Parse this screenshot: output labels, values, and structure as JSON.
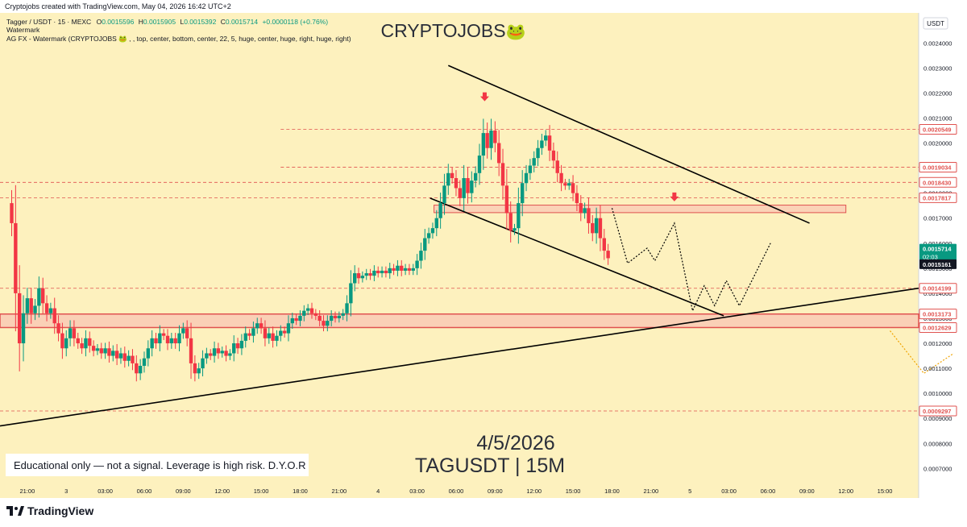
{
  "header": {
    "credit": "Cryptojobs created with TradingView.com, May 04, 2026 16:42 UTC+2"
  },
  "chart_data": {
    "type": "candlestick",
    "symbol_line": {
      "name": "Tagger / USDT · 15 · MEXC",
      "o_label": "O",
      "o": "0.0015596",
      "h_label": "H",
      "h": "0.0015905",
      "l_label": "L",
      "l": "0.0015392",
      "c_label": "C",
      "c": "0.0015714",
      "change": "+0.0000118 (+0.76%)"
    },
    "indicator_1": "Watermark",
    "indicator_2": "AG FX - Watermark (CRYPTOJOBS 🐸 , , top, center, bottom, center, 22, 5, huge, center, huge, right, huge, right)",
    "watermark": "CRYPTOJOBS",
    "watermark_emoji": "🐸",
    "date_title": "4/5/2026",
    "symbol_title": "TAGUSDT | 15M",
    "disclaimer": "Educational only — not a signal. Leverage is high risk. D.Y.O.R",
    "currency": "USDT",
    "y_range": [
      0.00064,
      0.00252
    ],
    "y_ticks": [
      {
        "v": 0.0024,
        "label": "0.0024000"
      },
      {
        "v": 0.0023,
        "label": "0.0023000"
      },
      {
        "v": 0.0022,
        "label": "0.0022000"
      },
      {
        "v": 0.0021,
        "label": "0.0021000"
      },
      {
        "v": 0.002,
        "label": "0.0020000"
      },
      {
        "v": 0.0019,
        "label": "0.0019000"
      },
      {
        "v": 0.0018,
        "label": "0.0018000"
      },
      {
        "v": 0.0017,
        "label": "0.0017000"
      },
      {
        "v": 0.0016,
        "label": "0.0016000"
      },
      {
        "v": 0.0015,
        "label": "0.0015000"
      },
      {
        "v": 0.0014,
        "label": "0.0014000"
      },
      {
        "v": 0.0013,
        "label": "0.0013000"
      },
      {
        "v": 0.0012,
        "label": "0.0012000"
      },
      {
        "v": 0.0011,
        "label": "0.0011000"
      },
      {
        "v": 0.001,
        "label": "0.0010000"
      },
      {
        "v": 0.0009,
        "label": "0.0009000"
      },
      {
        "v": 0.0008,
        "label": "0.0008000"
      },
      {
        "v": 0.0007,
        "label": "0.0007000"
      }
    ],
    "x_labels": [
      {
        "t": 0,
        "label": "21:00"
      },
      {
        "t": 3,
        "label": "3"
      },
      {
        "t": 6,
        "label": "03:00"
      },
      {
        "t": 9,
        "label": "06:00"
      },
      {
        "t": 12,
        "label": "09:00"
      },
      {
        "t": 15,
        "label": "12:00"
      },
      {
        "t": 18,
        "label": "15:00"
      },
      {
        "t": 21,
        "label": "18:00"
      },
      {
        "t": 24,
        "label": "21:00"
      },
      {
        "t": 27,
        "label": "4"
      },
      {
        "t": 30,
        "label": "03:00"
      },
      {
        "t": 33,
        "label": "06:00"
      },
      {
        "t": 36,
        "label": "09:00"
      },
      {
        "t": 39,
        "label": "12:00"
      },
      {
        "t": 42,
        "label": "15:00"
      },
      {
        "t": 45,
        "label": "18:00"
      },
      {
        "t": 48,
        "label": "21:00"
      },
      {
        "t": 51,
        "label": "5"
      },
      {
        "t": 54,
        "label": "03:00"
      },
      {
        "t": 57,
        "label": "06:00"
      },
      {
        "t": 60,
        "label": "09:00"
      },
      {
        "t": 63,
        "label": "12:00"
      },
      {
        "t": 66,
        "label": "15:00"
      }
    ],
    "x_range": [
      -2.1,
      68.6
    ],
    "key_levels": [
      {
        "v": 0.0020549,
        "label": "0.0020549"
      },
      {
        "v": 0.0019034,
        "label": "0.0019034"
      },
      {
        "v": 0.001843,
        "label": "0.0018430"
      },
      {
        "v": 0.0017817,
        "label": "0.0017817"
      },
      {
        "v": 0.0014199,
        "label": "0.0014199"
      },
      {
        "v": 0.0013173,
        "label": "0.0013173"
      },
      {
        "v": 0.0012629,
        "label": "0.0012629"
      },
      {
        "v": 0.0009297,
        "label": "0.0009297"
      }
    ],
    "current_price": {
      "v": 0.0015714,
      "label": "0.0015714",
      "countdown": "02:03"
    },
    "secondary_price": {
      "v": 0.0015161,
      "label": "0.0015161"
    },
    "price_path": [
      [
        -1.5,
        0.00176
      ],
      [
        -1.2,
        0.00168
      ],
      [
        -0.9,
        0.0014
      ],
      [
        -0.6,
        0.0012
      ],
      [
        -0.3,
        0.00132
      ],
      [
        0.0,
        0.00138
      ],
      [
        0.3,
        0.00132
      ],
      [
        0.6,
        0.00135
      ],
      [
        0.9,
        0.00142
      ],
      [
        1.2,
        0.00136
      ],
      [
        1.5,
        0.00132
      ],
      [
        1.8,
        0.00134
      ],
      [
        2.1,
        0.00128
      ],
      [
        2.4,
        0.00124
      ],
      [
        2.7,
        0.00118
      ],
      [
        3.0,
        0.00122
      ],
      [
        3.3,
        0.00126
      ],
      [
        3.6,
        0.00122
      ],
      [
        3.9,
        0.0012
      ],
      [
        4.2,
        0.00118
      ],
      [
        4.5,
        0.00122
      ],
      [
        4.8,
        0.00119
      ],
      [
        5.1,
        0.00117
      ],
      [
        5.4,
        0.00118
      ],
      [
        5.7,
        0.00116
      ],
      [
        6.0,
        0.00118
      ],
      [
        6.3,
        0.00115
      ],
      [
        6.6,
        0.00117
      ],
      [
        6.9,
        0.00114
      ],
      [
        7.2,
        0.00116
      ],
      [
        7.5,
        0.00113
      ],
      [
        7.8,
        0.00115
      ],
      [
        8.1,
        0.00112
      ],
      [
        8.4,
        0.00108
      ],
      [
        8.7,
        0.00111
      ],
      [
        9.0,
        0.00114
      ],
      [
        9.3,
        0.00118
      ],
      [
        9.6,
        0.00122
      ],
      [
        9.9,
        0.0012
      ],
      [
        10.2,
        0.00124
      ],
      [
        10.5,
        0.00123
      ],
      [
        10.8,
        0.0012
      ],
      [
        11.1,
        0.00122
      ],
      [
        11.4,
        0.0012
      ],
      [
        11.7,
        0.00124
      ],
      [
        12.0,
        0.00126
      ],
      [
        12.3,
        0.00122
      ],
      [
        12.6,
        0.00112
      ],
      [
        12.9,
        0.00108
      ],
      [
        13.2,
        0.0011
      ],
      [
        13.5,
        0.00114
      ],
      [
        13.8,
        0.00116
      ],
      [
        14.1,
        0.00115
      ],
      [
        14.4,
        0.00118
      ],
      [
        14.7,
        0.00116
      ],
      [
        15.0,
        0.00117
      ],
      [
        15.3,
        0.00115
      ],
      [
        15.6,
        0.00116
      ],
      [
        15.9,
        0.0012
      ],
      [
        16.2,
        0.00118
      ],
      [
        16.5,
        0.00121
      ],
      [
        16.8,
        0.00124
      ],
      [
        17.1,
        0.00123
      ],
      [
        17.4,
        0.00126
      ],
      [
        17.7,
        0.00128
      ],
      [
        18.0,
        0.00126
      ],
      [
        18.3,
        0.00122
      ],
      [
        18.6,
        0.00124
      ],
      [
        18.9,
        0.00121
      ],
      [
        19.2,
        0.00123
      ],
      [
        19.5,
        0.00125
      ],
      [
        19.8,
        0.00124
      ],
      [
        20.1,
        0.00128
      ],
      [
        20.4,
        0.0013
      ],
      [
        20.7,
        0.00129
      ],
      [
        21.0,
        0.00131
      ],
      [
        21.3,
        0.00133
      ],
      [
        21.6,
        0.00134
      ],
      [
        21.9,
        0.00132
      ],
      [
        22.2,
        0.00131
      ],
      [
        22.5,
        0.00129
      ],
      [
        22.8,
        0.00127
      ],
      [
        23.1,
        0.00129
      ],
      [
        23.4,
        0.00131
      ],
      [
        23.7,
        0.0013
      ],
      [
        24.0,
        0.00131
      ],
      [
        24.3,
        0.00132
      ],
      [
        24.6,
        0.00136
      ],
      [
        24.9,
        0.00144
      ],
      [
        25.2,
        0.00148
      ],
      [
        25.5,
        0.00146
      ],
      [
        25.8,
        0.00147
      ],
      [
        26.1,
        0.00148
      ],
      [
        26.4,
        0.00147
      ],
      [
        26.7,
        0.00149
      ],
      [
        27.0,
        0.00148
      ],
      [
        27.3,
        0.00149
      ],
      [
        27.6,
        0.00148
      ],
      [
        27.9,
        0.0015
      ],
      [
        28.2,
        0.00149
      ],
      [
        28.5,
        0.00151
      ],
      [
        28.8,
        0.00149
      ],
      [
        29.1,
        0.0015
      ],
      [
        29.4,
        0.00149
      ],
      [
        29.7,
        0.0015
      ],
      [
        30.0,
        0.00153
      ],
      [
        30.3,
        0.00157
      ],
      [
        30.6,
        0.00162
      ],
      [
        30.9,
        0.00164
      ],
      [
        31.2,
        0.00166
      ],
      [
        31.5,
        0.0017
      ],
      [
        31.8,
        0.00176
      ],
      [
        32.1,
        0.00183
      ],
      [
        32.4,
        0.00188
      ],
      [
        32.7,
        0.00186
      ],
      [
        33.0,
        0.00182
      ],
      [
        33.3,
        0.00178
      ],
      [
        33.6,
        0.00186
      ],
      [
        33.9,
        0.0018
      ],
      [
        34.2,
        0.00185
      ],
      [
        34.5,
        0.00188
      ],
      [
        34.8,
        0.00195
      ],
      [
        35.1,
        0.00204
      ],
      [
        35.4,
        0.00198
      ],
      [
        35.7,
        0.00205
      ],
      [
        36.0,
        0.002
      ],
      [
        36.3,
        0.00192
      ],
      [
        36.6,
        0.00183
      ],
      [
        36.9,
        0.00172
      ],
      [
        37.2,
        0.00165
      ],
      [
        37.5,
        0.00166
      ],
      [
        37.8,
        0.00176
      ],
      [
        38.1,
        0.00184
      ],
      [
        38.4,
        0.00188
      ],
      [
        38.7,
        0.00191
      ],
      [
        39.0,
        0.00194
      ],
      [
        39.3,
        0.00198
      ],
      [
        39.6,
        0.00201
      ],
      [
        39.9,
        0.00203
      ],
      [
        40.2,
        0.00197
      ],
      [
        40.5,
        0.00193
      ],
      [
        40.8,
        0.00188
      ],
      [
        41.1,
        0.00184
      ],
      [
        41.4,
        0.00183
      ],
      [
        41.7,
        0.00184
      ],
      [
        42.0,
        0.0018
      ],
      [
        42.3,
        0.00176
      ],
      [
        42.6,
        0.00172
      ],
      [
        42.9,
        0.00174
      ],
      [
        43.2,
        0.00168
      ],
      [
        43.5,
        0.00164
      ],
      [
        43.8,
        0.0017
      ],
      [
        44.1,
        0.00162
      ],
      [
        44.4,
        0.00157
      ],
      [
        44.7,
        0.00154
      ]
    ],
    "projected_path": [
      [
        45.0,
        0.00174
      ],
      [
        46.2,
        0.00152
      ],
      [
        47.7,
        0.00158
      ],
      [
        48.3,
        0.00153
      ],
      [
        49.8,
        0.00168
      ],
      [
        51.2,
        0.00133
      ],
      [
        52.1,
        0.00143
      ],
      [
        52.9,
        0.00135
      ],
      [
        53.8,
        0.00145
      ],
      [
        54.8,
        0.00135
      ],
      [
        57.2,
        0.0016
      ]
    ],
    "projected_path_2": [
      [
        66.4,
        0.00125
      ],
      [
        69.0,
        0.00108
      ],
      [
        71.3,
        0.00116
      ]
    ],
    "resistance_zone": {
      "from": 0.001752,
      "to": 0.001722,
      "x_start": 31.3,
      "x_end": 63.0
    },
    "support_zone": {
      "from": 0.001317,
      "to": 0.001263
    },
    "upper_channel": [
      [
        32.4,
        0.00231
      ],
      [
        60.2,
        0.00168
      ]
    ],
    "lower_channel": [
      [
        31.0,
        0.00178
      ],
      [
        53.6,
        0.00131
      ]
    ],
    "trendline": [
      [
        -2.1,
        0.00087
      ],
      [
        68.6,
        0.00142
      ]
    ],
    "sell_arrows": [
      [
        35.2,
        0.00218
      ],
      [
        49.8,
        0.00178
      ]
    ]
  }
}
